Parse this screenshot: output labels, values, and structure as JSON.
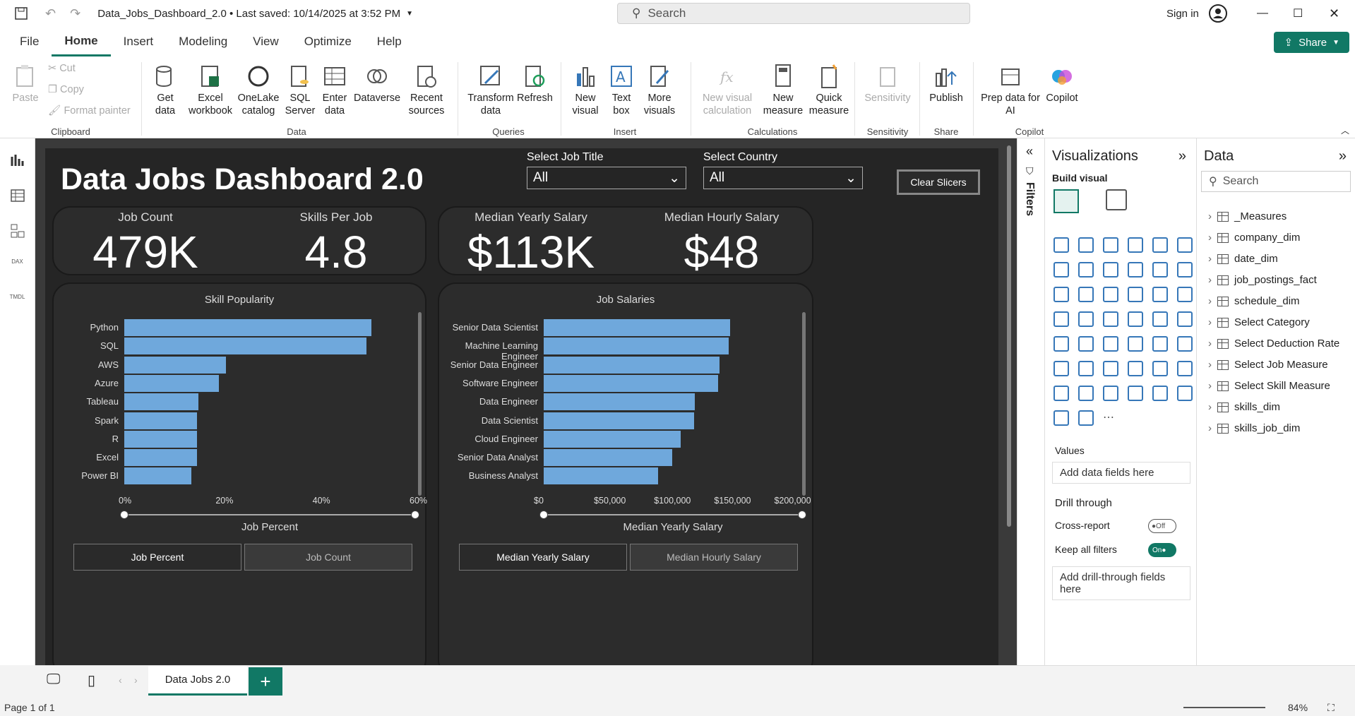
{
  "window": {
    "title": "Data_Jobs_Dashboard_2.0 • Last saved: 10/14/2025 at 3:52 PM",
    "search": "Search",
    "signin": "Sign in"
  },
  "menu": [
    "File",
    "Home",
    "Insert",
    "Modeling",
    "View",
    "Optimize",
    "Help"
  ],
  "share": "Share",
  "ribbon": {
    "paste": "Paste",
    "cut": "Cut",
    "copy": "Copy",
    "format_painter": "Format painter",
    "get_data": "Get data",
    "excel": "Excel workbook",
    "onelake": "OneLake catalog",
    "sql": "SQL Server",
    "enter": "Enter data",
    "dataverse": "Dataverse",
    "recent": "Recent sources",
    "transform": "Transform data",
    "refresh": "Refresh",
    "new_visual": "New visual",
    "text_box": "Text box",
    "more_visuals": "More visuals",
    "new_calc": "New visual calculation",
    "new_measure": "New measure",
    "quick_measure": "Quick measure",
    "sensitivity": "Sensitivity",
    "publish": "Publish",
    "prep": "Prep data for AI",
    "copilot": "Copilot",
    "groups": {
      "clipboard": "Clipboard",
      "data": "Data",
      "queries": "Queries",
      "insert": "Insert",
      "calculations": "Calculations",
      "sensitivity": "Sensitivity",
      "share": "Share",
      "copilot": "Copilot"
    }
  },
  "dashboard": {
    "title": "Data Jobs Dashboard 2.0",
    "slicer1": {
      "label": "Select Job Title",
      "value": "All"
    },
    "slicer2": {
      "label": "Select Country",
      "value": "All"
    },
    "clear": "Clear Slicers",
    "kpi": {
      "job_count_label": "Job Count",
      "job_count": "479K",
      "skills_label": "Skills Per Job",
      "skills": "4.8",
      "yearly_label": "Median Yearly Salary",
      "yearly": "$113K",
      "hourly_label": "Median Hourly Salary",
      "hourly": "$48"
    },
    "buttons": {
      "job_percent": "Job Percent",
      "job_count": "Job Count",
      "yearly": "Median Yearly Salary",
      "hourly": "Median Hourly Salary"
    }
  },
  "chart_data": [
    {
      "type": "bar",
      "title": "Skill Popularity",
      "xlabel": "Job Percent",
      "categories": [
        "Python",
        "SQL",
        "AWS",
        "Azure",
        "Tableau",
        "Spark",
        "R",
        "Excel",
        "Power BI"
      ],
      "values": [
        0.51,
        0.5,
        0.21,
        0.195,
        0.153,
        0.15,
        0.15,
        0.15,
        0.138
      ],
      "xlim": [
        0,
        0.6
      ],
      "ticks": [
        "0%",
        "20%",
        "40%",
        "60%"
      ]
    },
    {
      "type": "bar",
      "title": "Job Salaries",
      "xlabel": "Median Yearly Salary",
      "categories": [
        "Senior Data Scientist",
        "Machine Learning Engineer",
        "Senior Data Engineer",
        "Software Engineer",
        "Data Engineer",
        "Data Scientist",
        "Cloud Engineer",
        "Senior Data Analyst",
        "Business Analyst"
      ],
      "values": [
        155000,
        154000,
        146000,
        145000,
        126000,
        125000,
        114000,
        107000,
        95000
      ],
      "xlim": [
        0,
        215000
      ],
      "ticks": [
        "$0",
        "$50,000",
        "$100,000",
        "$150,000",
        "$200,000"
      ]
    }
  ],
  "viz": {
    "title": "Visualizations",
    "build": "Build visual",
    "values": "Values",
    "add_fields": "Add data fields here",
    "drill": "Drill through",
    "cross": "Cross-report",
    "off": "Off",
    "keep": "Keep all filters",
    "on": "On",
    "add_drill": "Add drill-through fields here"
  },
  "filters": "Filters",
  "data_pane": {
    "title": "Data",
    "search": "Search",
    "items": [
      "_Measures",
      "company_dim",
      "date_dim",
      "job_postings_fact",
      "schedule_dim",
      "Select Category",
      "Select Deduction Rate",
      "Select Job Measure",
      "Select Skill Measure",
      "skills_dim",
      "skills_job_dim"
    ]
  },
  "page_tab": "Data Jobs 2.0",
  "status": {
    "page": "Page 1 of 1",
    "zoom": "84%"
  }
}
